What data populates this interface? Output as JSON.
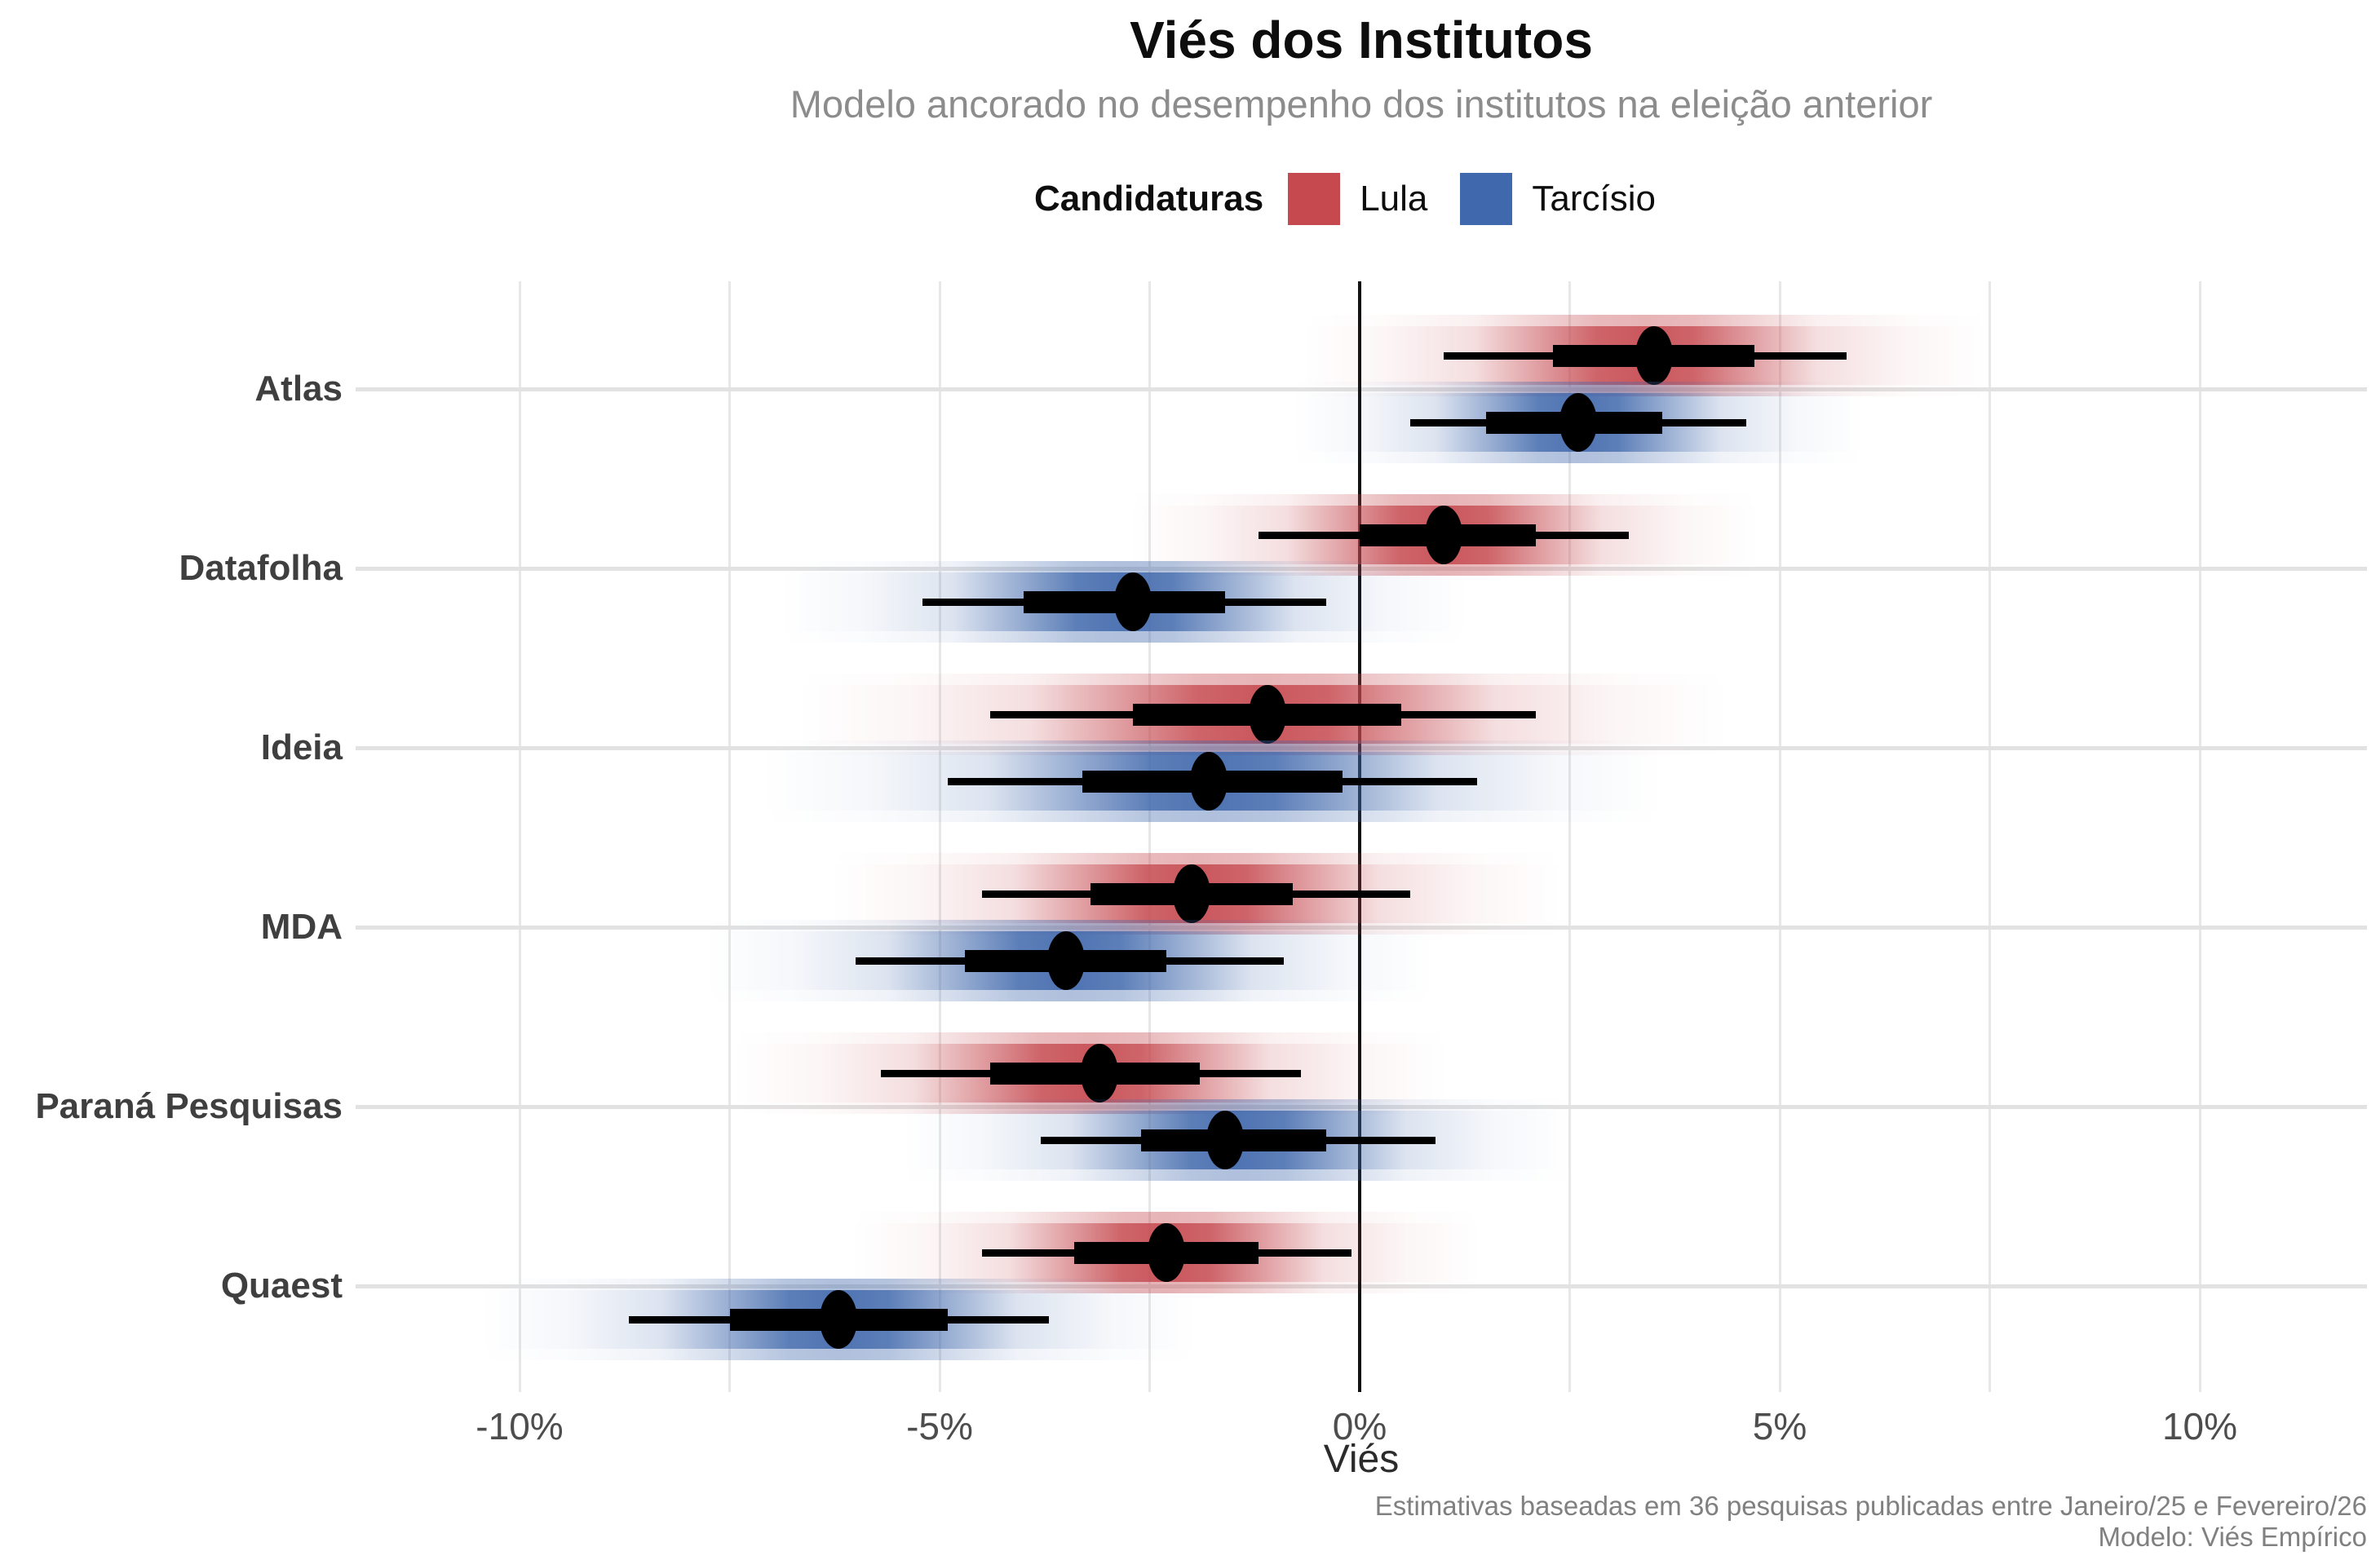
{
  "title": "Viés dos Institutos",
  "subtitle": "Modelo ancorado no desempenho dos institutos na eleição anterior",
  "legend": {
    "title": "Candidaturas",
    "items": [
      {
        "label": "Lula",
        "color": "#C5494F"
      },
      {
        "label": "Tarcísio",
        "color": "#4068AC"
      }
    ]
  },
  "caption": {
    "line1": "Estimativas baseadas em 36 pesquisas publicadas entre Janeiro/25 e Fevereiro/26",
    "line2": "Modelo: Viés Empírico"
  },
  "chart_data": {
    "type": "dot-interval",
    "orientation": "horizontal",
    "x_unit": "percent",
    "xlabel": "Viés",
    "xlim": [
      -12,
      12
    ],
    "x_major_ticks": [
      {
        "value": -10,
        "label": "-10%"
      },
      {
        "value": -5,
        "label": "-5%"
      },
      {
        "value": 0,
        "label": "0%"
      },
      {
        "value": 5,
        "label": "5%"
      },
      {
        "value": 10,
        "label": "10%"
      }
    ],
    "x_minor_gridlines": [
      -7.5,
      -2.5,
      2.5,
      7.5
    ],
    "zero_reference_line": 0,
    "grid": true,
    "legend_position": "top",
    "categories": [
      "Atlas",
      "Datafolha",
      "Ideia",
      "MDA",
      "Paraná Pesquisas",
      "Quaest"
    ],
    "institutes": [
      {
        "name": "Atlas",
        "estimates": [
          {
            "candidate": "Lula",
            "point": 3.5,
            "inner_interval": [
              2.3,
              4.7
            ],
            "outer_interval": [
              1.0,
              5.8
            ]
          },
          {
            "candidate": "Tarcísio",
            "point": 2.6,
            "inner_interval": [
              1.5,
              3.6
            ],
            "outer_interval": [
              0.6,
              4.6
            ]
          }
        ]
      },
      {
        "name": "Datafolha",
        "estimates": [
          {
            "candidate": "Lula",
            "point": 1.0,
            "inner_interval": [
              0.0,
              2.1
            ],
            "outer_interval": [
              -1.2,
              3.2
            ]
          },
          {
            "candidate": "Tarcísio",
            "point": -2.7,
            "inner_interval": [
              -4.0,
              -1.6
            ],
            "outer_interval": [
              -5.2,
              -0.4
            ]
          }
        ]
      },
      {
        "name": "Ideia",
        "estimates": [
          {
            "candidate": "Lula",
            "point": -1.1,
            "inner_interval": [
              -2.7,
              0.5
            ],
            "outer_interval": [
              -4.4,
              2.1
            ]
          },
          {
            "candidate": "Tarcísio",
            "point": -1.8,
            "inner_interval": [
              -3.3,
              -0.2
            ],
            "outer_interval": [
              -4.9,
              1.4
            ]
          }
        ]
      },
      {
        "name": "MDA",
        "estimates": [
          {
            "candidate": "Lula",
            "point": -2.0,
            "inner_interval": [
              -3.2,
              -0.8
            ],
            "outer_interval": [
              -4.5,
              0.6
            ]
          },
          {
            "candidate": "Tarcísio",
            "point": -3.5,
            "inner_interval": [
              -4.7,
              -2.3
            ],
            "outer_interval": [
              -6.0,
              -0.9
            ]
          }
        ]
      },
      {
        "name": "Paraná Pesquisas",
        "estimates": [
          {
            "candidate": "Lula",
            "point": -3.1,
            "inner_interval": [
              -4.4,
              -1.9
            ],
            "outer_interval": [
              -5.7,
              -0.7
            ]
          },
          {
            "candidate": "Tarcísio",
            "point": -1.6,
            "inner_interval": [
              -2.6,
              -0.4
            ],
            "outer_interval": [
              -3.8,
              0.9
            ]
          }
        ]
      },
      {
        "name": "Quaest",
        "estimates": [
          {
            "candidate": "Lula",
            "point": -2.3,
            "inner_interval": [
              -3.4,
              -1.2
            ],
            "outer_interval": [
              -4.5,
              -0.1
            ]
          },
          {
            "candidate": "Tarcísio",
            "point": -6.2,
            "inner_interval": [
              -7.5,
              -4.9
            ],
            "outer_interval": [
              -8.7,
              -3.7
            ]
          }
        ]
      }
    ]
  }
}
